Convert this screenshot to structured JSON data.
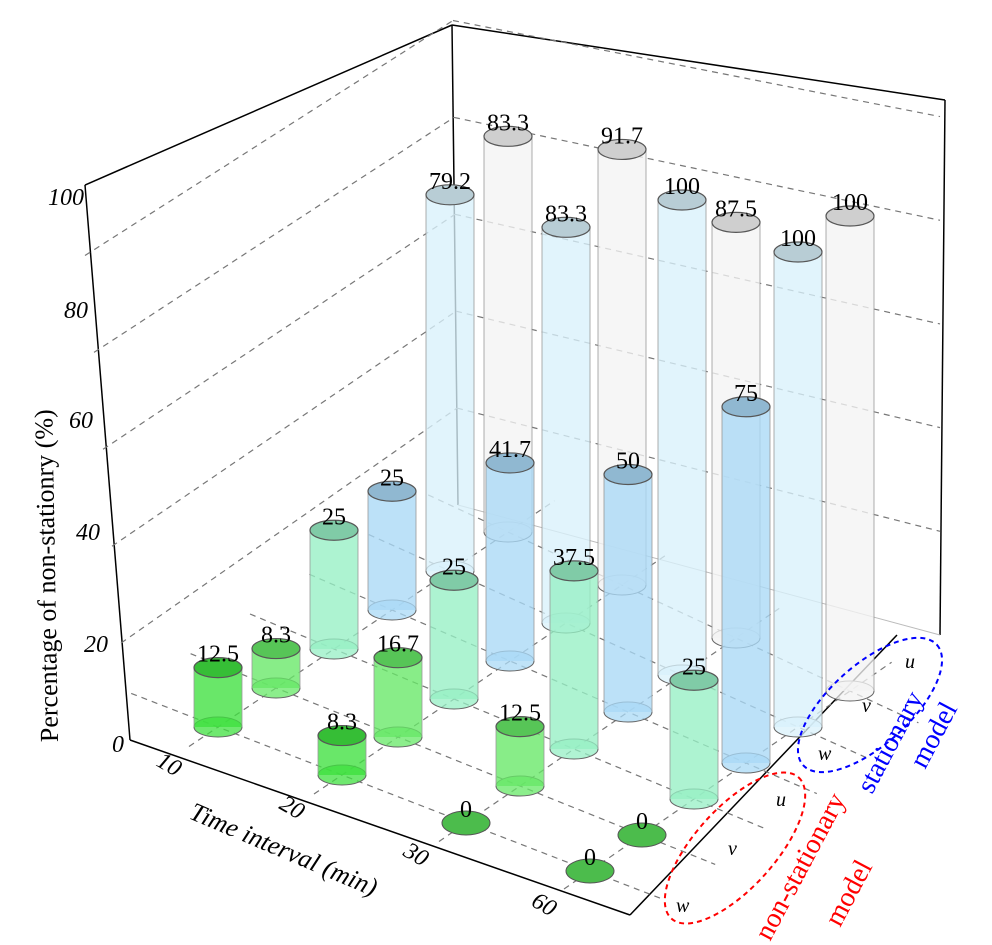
{
  "chart_data": {
    "type": "bar",
    "subtype": "3d-cylinder",
    "ylabel": "Percentage of non-stationry (%)",
    "xlabel": "Time interval (min)",
    "zlim": [
      0,
      100
    ],
    "z_ticks": [
      "0",
      "20",
      "40",
      "60",
      "80",
      "100"
    ],
    "categories": [
      "10",
      "20",
      "30",
      "60"
    ],
    "row_labels": [
      "w",
      "v",
      "u",
      "w",
      "v",
      "u"
    ],
    "groups": [
      {
        "name": "non-stationary model",
        "color": "#ff0000",
        "rows": [
          0,
          1,
          2
        ]
      },
      {
        "name": "stationary model",
        "color": "#0000ff",
        "rows": [
          3,
          4,
          5
        ]
      }
    ],
    "group_text": {
      "nonstat_line1": "non-stationary",
      "nonstat_line2": "model",
      "stat_line1": "stationary",
      "stat_line2": "model"
    },
    "series": [
      {
        "name": "non-stationary w",
        "color": "#3fe03f",
        "values": [
          12.5,
          8.3,
          0,
          0
        ],
        "labels": [
          "12.5",
          "8.3",
          "0",
          "0"
        ]
      },
      {
        "name": "non-stationary v",
        "color": "#66e866",
        "values": [
          8.3,
          16.7,
          12.5,
          0
        ],
        "labels": [
          "8.3",
          "16.7",
          "12.5",
          "0"
        ]
      },
      {
        "name": "non-stationary u",
        "color": "#96efc4",
        "values": [
          25,
          25,
          37.5,
          25
        ],
        "labels": [
          "25",
          "25",
          "37.5",
          "25"
        ]
      },
      {
        "name": "stationary w",
        "color": "#a9d9f6",
        "values": [
          25,
          41.7,
          50,
          75
        ],
        "labels": [
          "25",
          "41.7",
          "50",
          "75"
        ]
      },
      {
        "name": "stationary v",
        "color": "#d9f1fb",
        "values": [
          79.2,
          83.3,
          100,
          100
        ],
        "labels": [
          "79.2",
          "83.3",
          "100",
          "100"
        ]
      },
      {
        "name": "stationary u",
        "color": "#f3f3f3",
        "values": [
          83.3,
          91.7,
          87.5,
          100
        ],
        "labels": [
          "83.3",
          "91.7",
          "87.5",
          "100"
        ]
      }
    ],
    "grid": true
  }
}
